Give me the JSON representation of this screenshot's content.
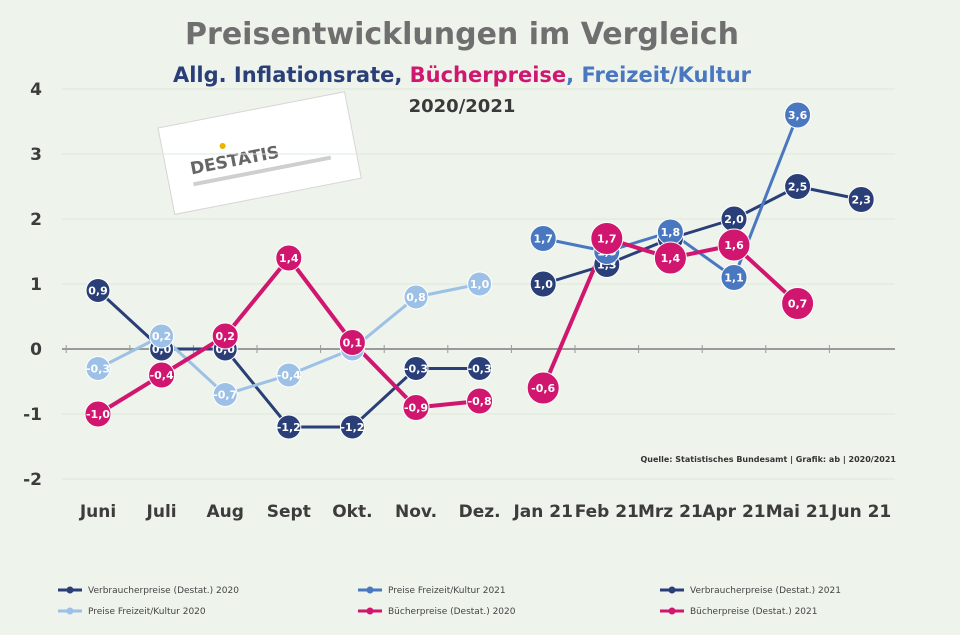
{
  "colors": {
    "dark_blue": "#2a3f78",
    "mid_blue": "#4a78c0",
    "light_blue": "#9cc0e6",
    "magenta": "#d0166e",
    "grid": "#dde8dd",
    "axis": "#9a9a9a"
  },
  "chart_data": {
    "type": "line",
    "title": "Preisentwicklungen im  Vergleich",
    "subtitle": {
      "part1": "Allg. Inflationsrate, ",
      "part2": "Bücherpreise",
      "part3": ", ",
      "part4": "Freizeit/Kultur"
    },
    "period": "2020/2021",
    "source": "Quelle: Statistisches Bundesamt | Grafik: ab | 2020/2021",
    "logo_text": "DESTATIS",
    "categories": [
      "Juni",
      "Juli",
      "Aug",
      "Sept",
      "Okt.",
      "Nov.",
      "Dez.",
      "Jan 21",
      "Feb 21",
      "Mrz 21",
      "Apr 21",
      "Mai 21",
      "Jun 21"
    ],
    "x_tick_labels": [
      "Juni",
      "Juli",
      "Aug",
      "Sept",
      "Okt.",
      "Nov.",
      "Dez.",
      "Jan 21",
      "Feb 21",
      "Mrz 21",
      "Apr 21",
      "Mai 21",
      "Jun 21"
    ],
    "y_ticks": [
      "4",
      "3",
      "2",
      "1",
      "0",
      "-1",
      "-2"
    ],
    "ylim": [
      -2,
      4
    ],
    "grid": true,
    "legend_position": "bottom",
    "series": [
      {
        "name": "Verbraucherpreise (Destat.) 2020",
        "color_key": "dark_blue",
        "values": [
          0.9,
          0.0,
          0.0,
          -1.2,
          -1.2,
          -0.3,
          -0.3,
          null,
          null,
          null,
          null,
          null,
          null
        ],
        "radius": 12
      },
      {
        "name": "Preise Freizeit/Kultur 2020",
        "color_key": "light_blue",
        "values": [
          -0.3,
          0.2,
          -0.7,
          -0.4,
          0.0,
          0.8,
          1.0,
          null,
          null,
          null,
          null,
          null,
          null
        ],
        "radius": 12
      },
      {
        "name": "Bücherpreise (Destat.) 2020",
        "color_key": "magenta",
        "values": [
          -1.0,
          -0.4,
          0.2,
          1.4,
          0.1,
          -0.9,
          -0.8,
          null,
          null,
          null,
          null,
          null,
          null
        ],
        "radius": 13
      },
      {
        "name": "Verbraucherpreise (Destat.) 2021",
        "color_key": "dark_blue",
        "values": [
          null,
          null,
          null,
          null,
          null,
          null,
          null,
          1.0,
          1.3,
          1.7,
          2.0,
          2.5,
          2.3
        ],
        "radius": 13
      },
      {
        "name": "Preise Freizeit/Kultur 2021",
        "color_key": "mid_blue",
        "values": [
          null,
          null,
          null,
          null,
          null,
          null,
          null,
          1.7,
          1.5,
          1.8,
          1.1,
          3.6,
          null
        ],
        "radius": 13
      },
      {
        "name": "Bücherpreise (Destat.) 2021",
        "color_key": "magenta",
        "values": [
          null,
          null,
          null,
          null,
          null,
          null,
          null,
          -0.6,
          1.7,
          1.4,
          1.6,
          0.7,
          null
        ],
        "radius": 16
      }
    ],
    "legend": [
      {
        "label": "Verbraucherpreise (Destat.) 2020",
        "color_key": "dark_blue"
      },
      {
        "label": "Preise Freizeit/Kultur 2021",
        "color_key": "mid_blue"
      },
      {
        "label": "Verbraucherpreise (Destat.) 2021",
        "color_key": "dark_blue"
      },
      {
        "label": "Preise Freizeit/Kultur 2020",
        "color_key": "light_blue"
      },
      {
        "label": "Bücherpreise (Destat.) 2020",
        "color_key": "magenta"
      },
      {
        "label": "Bücherpreise (Destat.) 2021",
        "color_key": "magenta"
      }
    ]
  }
}
